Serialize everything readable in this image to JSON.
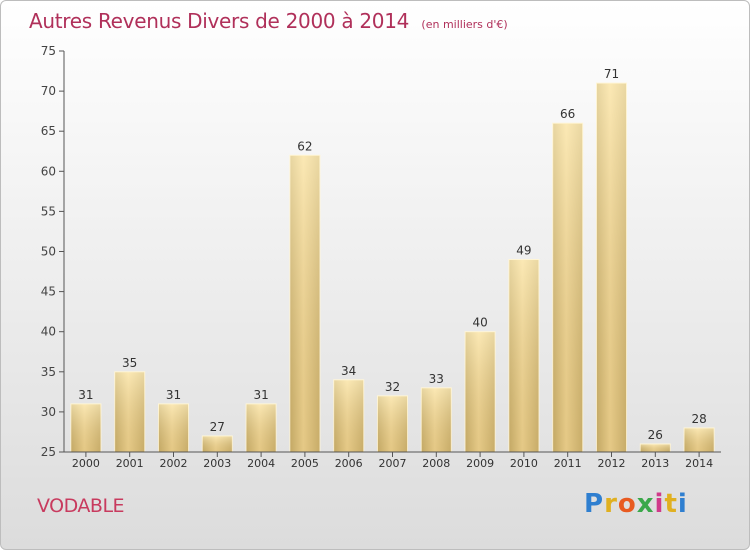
{
  "title": {
    "main": "Autres Revenus Divers de 2000 à 2014",
    "unit": "(en milliers d'€)"
  },
  "location": "VODABLE",
  "logo": {
    "text": "Proxiti",
    "icon": "proxiti-logo"
  },
  "colors": {
    "title": "#b0305a",
    "bar_light": "#f9dc96",
    "bar_dark": "#c8b06c",
    "axis": "#444444"
  },
  "chart_data": {
    "type": "bar",
    "title": "Autres Revenus Divers de 2000 à 2014",
    "subtitle": "(en milliers d'€)",
    "categories": [
      "2000",
      "2001",
      "2002",
      "2003",
      "2004",
      "2005",
      "2006",
      "2007",
      "2008",
      "2009",
      "2010",
      "2011",
      "2012",
      "2013",
      "2014"
    ],
    "values": [
      31,
      35,
      31,
      27,
      31,
      62,
      34,
      32,
      33,
      40,
      49,
      66,
      71,
      26,
      28
    ],
    "ylim": [
      25,
      75
    ],
    "yticks": [
      25,
      30,
      35,
      40,
      45,
      50,
      55,
      60,
      65,
      70,
      75
    ],
    "grid": false,
    "data_labels": true
  }
}
